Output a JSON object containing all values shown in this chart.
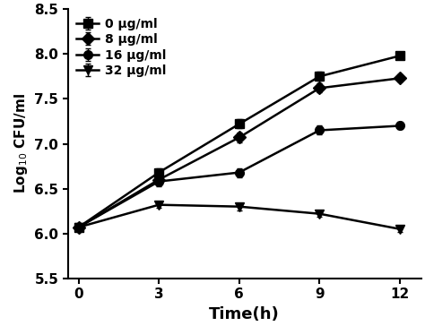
{
  "x": [
    0,
    3,
    6,
    9,
    12
  ],
  "series": [
    {
      "label": "0 μg/ml",
      "y": [
        6.07,
        6.68,
        7.22,
        7.75,
        7.98
      ],
      "yerr": [
        0.04,
        0.05,
        0.05,
        0.05,
        0.04
      ],
      "marker": "s",
      "color": "#000000"
    },
    {
      "label": "8 μg/ml",
      "y": [
        6.07,
        6.6,
        7.07,
        7.62,
        7.73
      ],
      "yerr": [
        0.04,
        0.05,
        0.05,
        0.05,
        0.04
      ],
      "marker": "D",
      "color": "#000000"
    },
    {
      "label": "16 μg/ml",
      "y": [
        6.07,
        6.58,
        6.68,
        7.15,
        7.2
      ],
      "yerr": [
        0.04,
        0.05,
        0.05,
        0.05,
        0.04
      ],
      "marker": "o",
      "color": "#000000"
    },
    {
      "label": "32 μg/ml",
      "y": [
        6.07,
        6.32,
        6.3,
        6.22,
        6.05
      ],
      "yerr": [
        0.04,
        0.03,
        0.04,
        0.03,
        0.03
      ],
      "marker": "v",
      "color": "#000000"
    }
  ],
  "xlabel": "Time(h)",
  "ylabel": "Log$_{10}$ CFU/ml",
  "xlim": [
    -0.4,
    12.8
  ],
  "ylim": [
    5.5,
    8.5
  ],
  "xticks": [
    0,
    3,
    6,
    9,
    12
  ],
  "yticks": [
    5.5,
    6.0,
    6.5,
    7.0,
    7.5,
    8.0,
    8.5
  ],
  "linewidth": 1.8,
  "markersize": 7,
  "capsize": 2,
  "xlabel_fontsize": 13,
  "ylabel_fontsize": 11,
  "tick_fontsize": 11,
  "legend_fontsize": 10
}
